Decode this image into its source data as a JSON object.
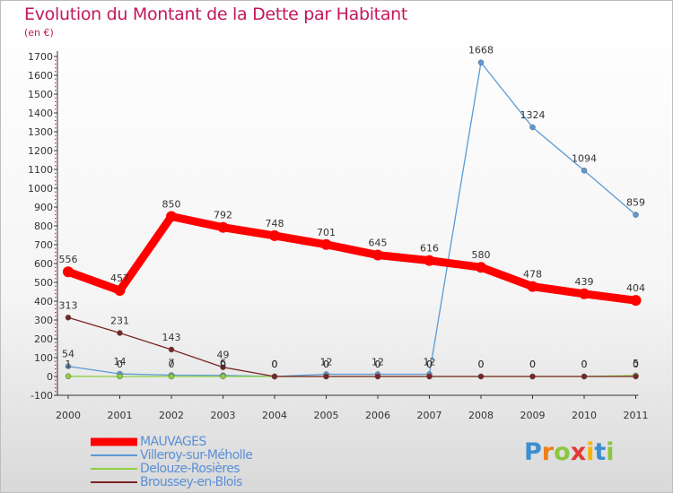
{
  "title": "Evolution du Montant de la Dette par Habitant",
  "unit": "(en €)",
  "logo": {
    "letters": [
      "P",
      "r",
      "o",
      "x",
      "i",
      "t",
      "i"
    ],
    "colors": [
      "#3b8fd0",
      "#ef7f1a",
      "#8cc63f",
      "#e53935",
      "#f4b400",
      "#3b8fd0",
      "#8cc63f"
    ]
  },
  "chart_data": {
    "type": "line",
    "x": [
      "2000",
      "2001",
      "2002",
      "2003",
      "2004",
      "2005",
      "2006",
      "2007",
      "2008",
      "2009",
      "2010",
      "2011"
    ],
    "ylim": [
      -100,
      1700
    ],
    "yticks": [
      -100,
      0,
      100,
      200,
      300,
      400,
      500,
      600,
      700,
      800,
      900,
      1000,
      1100,
      1200,
      1300,
      1400,
      1500,
      1600,
      1700
    ],
    "grid": false,
    "legend_placement": "bottom-left",
    "series": [
      {
        "name": "MAUVAGES",
        "color": "#ff0000",
        "values": [
          556,
          457,
          850,
          792,
          748,
          701,
          645,
          616,
          580,
          478,
          439,
          404
        ],
        "labels": [
          "556",
          "457",
          "850",
          "792",
          "748",
          "701",
          "645",
          "616",
          "580",
          "478",
          "439",
          "404"
        ]
      },
      {
        "name": "Villeroy-sur-Méholle",
        "color": "#5b9bd5",
        "values": [
          54,
          14,
          7,
          6,
          0,
          12,
          12,
          12,
          1668,
          1324,
          1094,
          859
        ],
        "labels": [
          "54",
          "14",
          "7",
          "6",
          "0",
          "12",
          "12",
          "12",
          "1668",
          "1324",
          "1094",
          "859"
        ]
      },
      {
        "name": "Delouze-Rosières",
        "color": "#8cd13c",
        "values": [
          1,
          0,
          0,
          0,
          0,
          0,
          0,
          0,
          0,
          0,
          0,
          5
        ],
        "labels": [
          "1",
          "0",
          "0",
          "0",
          "0",
          "0",
          "0",
          "0",
          "0",
          "0",
          "0",
          "5"
        ]
      },
      {
        "name": "Broussey-en-Blois",
        "color": "#7b2424",
        "values": [
          313,
          231,
          143,
          49,
          0,
          0,
          0,
          0,
          0,
          0,
          0,
          0
        ],
        "labels": [
          "313",
          "231",
          "143",
          "49",
          "0",
          "0",
          "0",
          "0",
          "0",
          "0",
          "0",
          "0"
        ]
      }
    ]
  }
}
